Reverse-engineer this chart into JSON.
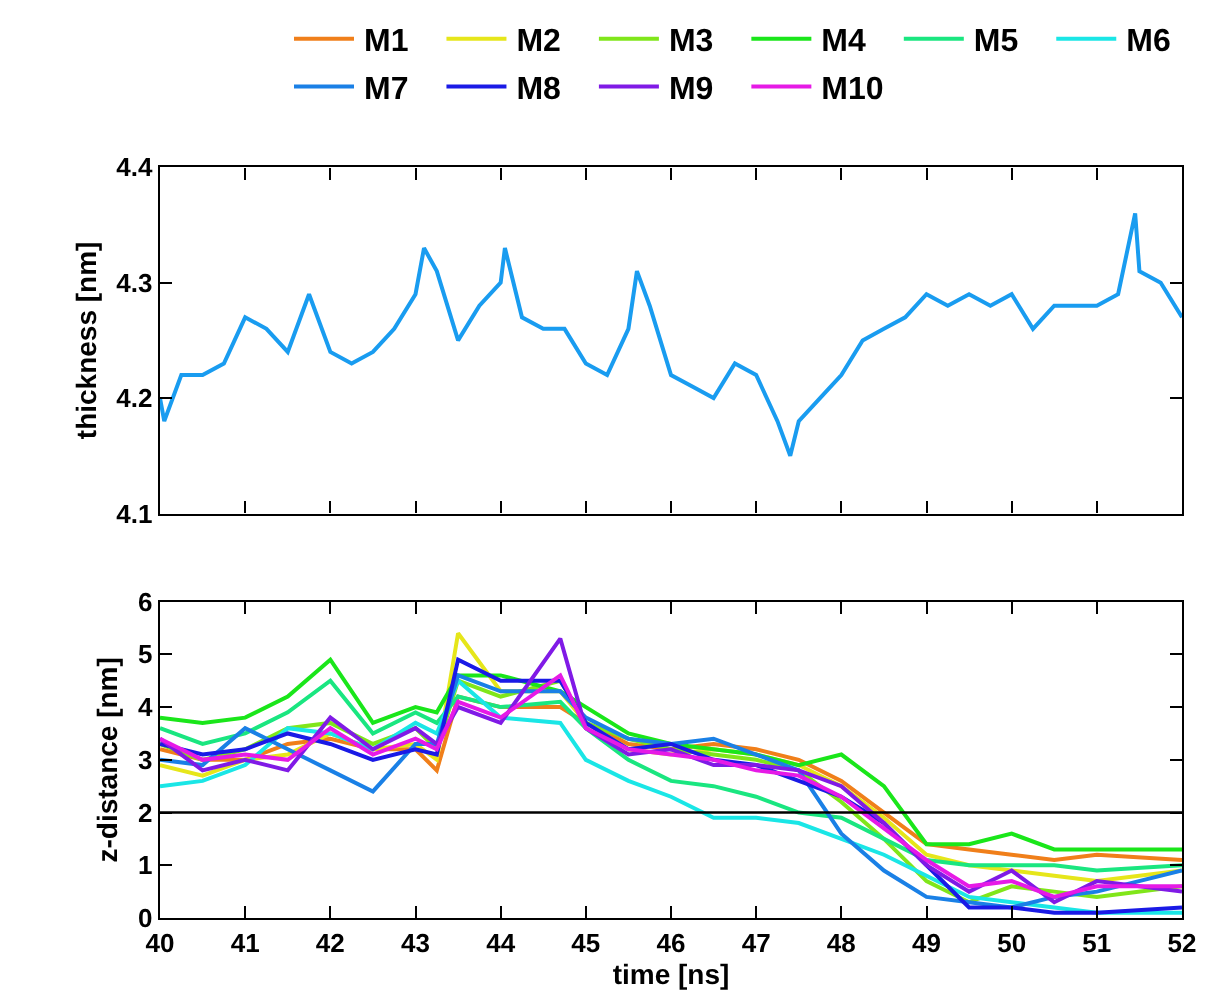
{
  "chart_data": [
    {
      "type": "line",
      "ylabel": "thickness [nm]",
      "xlim": [
        40,
        52
      ],
      "xticks": [
        {
          "value": 40,
          "label": null
        },
        {
          "value": 41,
          "label": null
        },
        {
          "value": 42,
          "label": null
        },
        {
          "value": 43,
          "label": null
        },
        {
          "value": 44,
          "label": null
        },
        {
          "value": 45,
          "label": null
        },
        {
          "value": 46,
          "label": null
        },
        {
          "value": 47,
          "label": null
        },
        {
          "value": 48,
          "label": null
        },
        {
          "value": 49,
          "label": null
        },
        {
          "value": 50,
          "label": null
        },
        {
          "value": 51,
          "label": null
        },
        {
          "value": 52,
          "label": null
        }
      ],
      "ylim": [
        4.1,
        4.4
      ],
      "yticks": [
        4.1,
        4.2,
        4.3,
        4.4
      ],
      "tick_labels": "y",
      "legend": false,
      "x": [
        40,
        40.05,
        40.25,
        40.5,
        40.75,
        41,
        41.25,
        41.5,
        41.75,
        42,
        42.25,
        42.5,
        42.75,
        43,
        43.1,
        43.25,
        43.5,
        43.75,
        44,
        44.05,
        44.25,
        44.5,
        44.75,
        45,
        45.25,
        45.5,
        45.6,
        45.75,
        46,
        46.25,
        46.5,
        46.75,
        47,
        47.25,
        47.4,
        47.5,
        47.75,
        48,
        48.25,
        48.5,
        48.75,
        49,
        49.25,
        49.5,
        49.75,
        50,
        50.25,
        50.5,
        50.75,
        51,
        51.25,
        51.45,
        51.5,
        51.75,
        52
      ],
      "series": [
        {
          "color": "#199cf0",
          "values": [
            4.2,
            4.18,
            4.22,
            4.22,
            4.23,
            4.27,
            4.26,
            4.24,
            4.29,
            4.24,
            4.23,
            4.24,
            4.26,
            4.29,
            4.33,
            4.31,
            4.25,
            4.28,
            4.3,
            4.33,
            4.27,
            4.26,
            4.26,
            4.23,
            4.22,
            4.26,
            4.31,
            4.28,
            4.22,
            4.21,
            4.2,
            4.23,
            4.22,
            4.18,
            4.15,
            4.18,
            4.2,
            4.22,
            4.25,
            4.26,
            4.27,
            4.29,
            4.28,
            4.29,
            4.28,
            4.29,
            4.26,
            4.28,
            4.28,
            4.28,
            4.29,
            4.36,
            4.31,
            4.3,
            4.27
          ]
        }
      ]
    },
    {
      "type": "line",
      "xlabel": "time [ns]",
      "ylabel": "z-distance [nm]",
      "xlim": [
        40,
        52
      ],
      "xticks": [
        40,
        41,
        42,
        43,
        44,
        45,
        46,
        47,
        48,
        49,
        50,
        51,
        52
      ],
      "ylim": [
        0,
        6
      ],
      "yticks": [
        0,
        1,
        2,
        3,
        4,
        5,
        6
      ],
      "legend": "top",
      "ref_lines": [
        {
          "axis": "y",
          "value": 2,
          "color": "#000000"
        }
      ],
      "x": [
        40,
        40.5,
        41,
        41.5,
        42,
        42.5,
        43,
        43.25,
        43.5,
        44,
        44.7,
        45,
        45.5,
        46,
        46.5,
        47,
        47.5,
        48,
        48.5,
        49,
        49.5,
        50,
        50.5,
        51,
        52
      ],
      "series": [
        {
          "name": "M1",
          "color": "#f07f1a",
          "values": [
            3.2,
            3.0,
            3.0,
            3.3,
            3.4,
            3.2,
            3.2,
            2.8,
            4.2,
            4.0,
            4.0,
            3.7,
            3.3,
            3.2,
            3.3,
            3.2,
            3.0,
            2.6,
            2.0,
            1.4,
            1.3,
            1.2,
            1.1,
            1.2,
            1.1
          ]
        },
        {
          "name": "M2",
          "color": "#e6e61a",
          "values": [
            2.9,
            2.7,
            3.0,
            3.1,
            3.5,
            3.2,
            3.3,
            3.0,
            5.4,
            4.3,
            4.3,
            3.7,
            3.2,
            3.1,
            3.2,
            3.1,
            2.9,
            2.5,
            1.9,
            1.2,
            1.0,
            0.9,
            0.8,
            0.7,
            0.9
          ]
        },
        {
          "name": "M3",
          "color": "#80e61a",
          "values": [
            3.3,
            3.0,
            3.2,
            3.6,
            3.7,
            3.3,
            3.6,
            3.2,
            4.5,
            4.2,
            4.5,
            3.7,
            3.4,
            3.2,
            3.1,
            3.0,
            2.8,
            2.2,
            1.5,
            0.7,
            0.3,
            0.6,
            0.5,
            0.4,
            0.6
          ]
        },
        {
          "name": "M4",
          "color": "#1ae61a",
          "values": [
            3.8,
            3.7,
            3.8,
            4.2,
            4.9,
            3.7,
            4.0,
            3.9,
            4.6,
            4.6,
            4.3,
            4.0,
            3.5,
            3.3,
            3.2,
            3.1,
            2.9,
            3.1,
            2.5,
            1.4,
            1.4,
            1.6,
            1.3,
            1.3,
            1.3
          ]
        },
        {
          "name": "M5",
          "color": "#1ae680",
          "values": [
            3.6,
            3.3,
            3.5,
            3.9,
            4.5,
            3.5,
            3.9,
            3.7,
            4.2,
            4.0,
            4.1,
            3.6,
            3.0,
            2.6,
            2.5,
            2.3,
            2.0,
            1.9,
            1.5,
            1.1,
            1.0,
            1.0,
            1.0,
            0.9,
            1.0
          ]
        },
        {
          "name": "M6",
          "color": "#1ae6e6",
          "values": [
            2.5,
            2.6,
            2.9,
            3.6,
            3.5,
            3.2,
            3.7,
            3.5,
            4.5,
            3.8,
            3.7,
            3.0,
            2.6,
            2.3,
            1.9,
            1.9,
            1.8,
            1.5,
            1.2,
            0.8,
            0.4,
            0.3,
            0.2,
            0.1,
            0.1
          ]
        },
        {
          "name": "M7",
          "color": "#1a80e6",
          "values": [
            3.0,
            2.9,
            3.6,
            3.2,
            2.8,
            2.4,
            3.3,
            3.3,
            4.6,
            4.3,
            4.3,
            3.8,
            3.4,
            3.3,
            3.4,
            3.1,
            2.8,
            1.6,
            0.9,
            0.4,
            0.3,
            0.2,
            0.4,
            0.5,
            0.9
          ]
        },
        {
          "name": "M8",
          "color": "#1a1ae6",
          "values": [
            3.3,
            3.1,
            3.2,
            3.5,
            3.3,
            3.0,
            3.2,
            3.1,
            4.9,
            4.5,
            4.5,
            3.7,
            3.2,
            3.3,
            3.0,
            2.9,
            2.6,
            2.3,
            1.8,
            1.0,
            0.2,
            0.2,
            0.1,
            0.1,
            0.2
          ]
        },
        {
          "name": "M9",
          "color": "#801ae6",
          "values": [
            3.4,
            2.8,
            3.0,
            2.8,
            3.8,
            3.2,
            3.6,
            3.3,
            4.0,
            3.7,
            5.3,
            3.6,
            3.1,
            3.2,
            2.9,
            2.9,
            2.8,
            2.5,
            1.8,
            1.0,
            0.5,
            0.9,
            0.3,
            0.7,
            0.5
          ]
        },
        {
          "name": "M10",
          "color": "#e61ae6",
          "values": [
            3.4,
            3.0,
            3.1,
            3.0,
            3.6,
            3.1,
            3.4,
            3.2,
            4.1,
            3.8,
            4.6,
            3.6,
            3.2,
            3.1,
            3.0,
            2.8,
            2.7,
            2.3,
            1.7,
            1.1,
            0.6,
            0.7,
            0.4,
            0.6,
            0.6
          ]
        }
      ]
    }
  ]
}
